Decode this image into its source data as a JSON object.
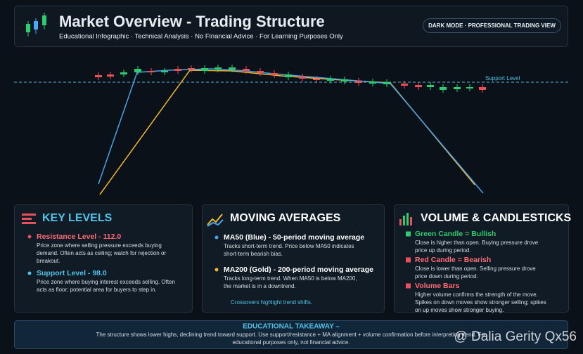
{
  "header": {
    "title": "Market Overview - Trading Structure",
    "subtitle": "Educational Infographic · Technical Analysis · No Financial Advice · For Learning Purposes Only",
    "badge": "DARK MODE · PROFESSIONAL TRADING VIEW"
  },
  "chart": {
    "support_label": "Support Level"
  },
  "panels": [
    {
      "title": "KEY LEVELS",
      "items": [
        {
          "heading": "Resistance Level - 112.0",
          "lines": [
            "Price zone where selling pressure exceeds buying",
            "demand. Often acts as ceiling; watch for rejection or",
            "breakout."
          ]
        },
        {
          "heading": "Support Level - 98.0",
          "lines": [
            "Price zone where buying interest exceeds selling. Often",
            "acts as floor; potential area for buyers to step in."
          ]
        }
      ]
    },
    {
      "title": "MOVING AVERAGES",
      "items": [
        {
          "heading": "MA50 (Blue) - 50-period moving average",
          "lines": [
            "Tracks short-term trend. Price below MA50 indicates",
            "short-term bearish bias."
          ]
        },
        {
          "heading": "MA200 (Gold) - 200-period moving average",
          "lines": [
            "Tracks long-term trend. When MA50 is below MA200,",
            "the market is in a downtrend."
          ]
        }
      ],
      "note": "Crossovers highlight trend shifts."
    },
    {
      "title": "VOLUME & CANDLESTICKS",
      "items": [
        {
          "heading": "Green Candle = Bullish",
          "lines": [
            "Close is higher than open. Buying pressure drove",
            "price up during period."
          ]
        },
        {
          "heading": "Red Candle = Bearish",
          "lines": [
            "Close is lower than open. Selling pressure drove",
            "price down during period."
          ]
        },
        {
          "heading": "Volume Bars",
          "lines": [
            "Higher volume confirms the strength of the move.",
            "Spikes on down moves show stronger selling; spikes",
            "on up moves show stronger buying."
          ]
        }
      ]
    }
  ],
  "takeaway": {
    "title": "EDUCATIONAL TAKEAWAY –",
    "lines": [
      "The structure shows lower highs, declining trend toward support. Use support/resistance + MA alignment + volume confirmation before interpreting trend. For",
      "educational purposes only, not financial advice."
    ]
  },
  "watermark": "@ Dalia Gerity Qx56"
}
